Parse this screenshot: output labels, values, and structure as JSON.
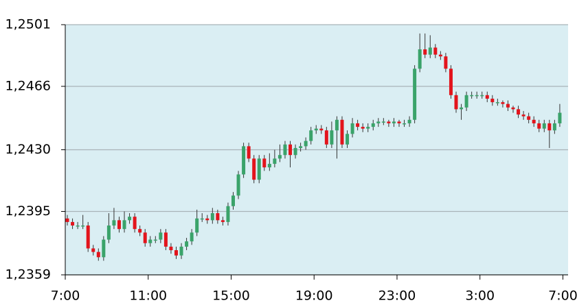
{
  "chart_data": {
    "type": "candlestick",
    "x": [
      0.1,
      0.35,
      0.6,
      0.85,
      1.1,
      1.35,
      1.6,
      1.85,
      2.1,
      2.35,
      2.6,
      2.85,
      3.1,
      3.35,
      3.6,
      3.85,
      4.1,
      4.35,
      4.6,
      4.85,
      5.1,
      5.35,
      5.6,
      5.85,
      6.1,
      6.35,
      6.6,
      6.85,
      7.1,
      7.35,
      7.6,
      7.85,
      8.1,
      8.35,
      8.6,
      8.85,
      9.1,
      9.35,
      9.6,
      9.85,
      10.1,
      10.35,
      10.6,
      10.85,
      11.1,
      11.35,
      11.6,
      11.85,
      12.1,
      12.35,
      12.6,
      12.85,
      13.1,
      13.35,
      13.6,
      13.85,
      14.1,
      14.35,
      14.6,
      14.85,
      15.1,
      15.35,
      15.6,
      15.85,
      16.1,
      16.35,
      16.6,
      16.85,
      17.1,
      17.35,
      17.6,
      17.85,
      18.1,
      18.35,
      18.6,
      18.85,
      19.1,
      19.35,
      19.6,
      19.85,
      20.1,
      20.35,
      20.6,
      20.85,
      21.1,
      21.35,
      21.6,
      21.85,
      22.1,
      22.35,
      22.6,
      22.85,
      23.1,
      23.35,
      23.6,
      23.85
    ],
    "open": [
      1.2391,
      1.2389,
      1.2387,
      1.2387,
      1.2387,
      1.2374,
      1.2372,
      1.2369,
      1.2379,
      1.2387,
      1.239,
      1.2385,
      1.239,
      1.2392,
      1.2385,
      1.2383,
      1.2377,
      1.2379,
      1.2379,
      1.2383,
      1.2375,
      1.2373,
      1.237,
      1.2375,
      1.2378,
      1.2383,
      1.2391,
      1.2391,
      1.239,
      1.2394,
      1.239,
      1.2389,
      1.2398,
      1.2404,
      1.2416,
      1.2432,
      1.2425,
      1.2413,
      1.2425,
      1.242,
      1.2422,
      1.2425,
      1.2427,
      1.2433,
      1.2427,
      1.2431,
      1.2432,
      1.2435,
      1.2441,
      1.2442,
      1.2441,
      1.2433,
      1.2441,
      1.2447,
      1.2433,
      1.2439,
      1.2445,
      1.2443,
      1.2442,
      1.2443,
      1.2445,
      1.2446,
      1.2446,
      1.2445,
      1.2446,
      1.2445,
      1.2445,
      1.2447,
      1.2476,
      1.2487,
      1.2484,
      1.2488,
      1.2484,
      1.2483,
      1.2476,
      1.2461,
      1.2453,
      1.2454,
      1.2461,
      1.2461,
      1.2461,
      1.2461,
      1.2459,
      1.2457,
      1.2457,
      1.2456,
      1.2454,
      1.2453,
      1.245,
      1.2449,
      1.2447,
      1.2445,
      1.2442,
      1.2445,
      1.2441,
      1.2445
    ],
    "high": [
      1.2393,
      1.2391,
      1.2389,
      1.2393,
      1.2389,
      1.2376,
      1.2374,
      1.2381,
      1.2394,
      1.2397,
      1.2392,
      1.2395,
      1.2394,
      1.2394,
      1.2387,
      1.2385,
      1.2381,
      1.2381,
      1.2385,
      1.2385,
      1.2377,
      1.2375,
      1.2377,
      1.238,
      1.2385,
      1.2396,
      1.2394,
      1.2393,
      1.2397,
      1.2396,
      1.2392,
      1.24,
      1.2406,
      1.2418,
      1.2434,
      1.2434,
      1.2427,
      1.2427,
      1.2427,
      1.2428,
      1.243,
      1.2433,
      1.2435,
      1.2435,
      1.2433,
      1.2434,
      1.2437,
      1.2443,
      1.2444,
      1.2444,
      1.2443,
      1.2446,
      1.2449,
      1.2449,
      1.2441,
      1.2448,
      1.2447,
      1.2445,
      1.2445,
      1.2447,
      1.2448,
      1.2448,
      1.2447,
      1.2448,
      1.2447,
      1.2447,
      1.2449,
      1.2478,
      1.2496,
      1.2496,
      1.2495,
      1.249,
      1.2486,
      1.2485,
      1.2478,
      1.2463,
      1.2456,
      1.2463,
      1.2463,
      1.2463,
      1.2463,
      1.2463,
      1.2461,
      1.2459,
      1.2458,
      1.2458,
      1.2455,
      1.2455,
      1.2452,
      1.2451,
      1.2449,
      1.2447,
      1.2447,
      1.2447,
      1.2447,
      1.2456
    ],
    "low": [
      1.2387,
      1.2385,
      1.2385,
      1.2385,
      1.2372,
      1.237,
      1.2367,
      1.2367,
      1.2377,
      1.2385,
      1.2383,
      1.2383,
      1.2388,
      1.2383,
      1.2381,
      1.2375,
      1.2375,
      1.2377,
      1.2377,
      1.2373,
      1.2371,
      1.2368,
      1.2368,
      1.2373,
      1.2376,
      1.2381,
      1.2389,
      1.2388,
      1.2388,
      1.2388,
      1.2387,
      1.2387,
      1.2396,
      1.2402,
      1.2414,
      1.2423,
      1.2411,
      1.2411,
      1.2418,
      1.2418,
      1.242,
      1.2423,
      1.2425,
      1.242,
      1.2425,
      1.2429,
      1.243,
      1.2433,
      1.2439,
      1.2439,
      1.2431,
      1.2431,
      1.2425,
      1.2431,
      1.2431,
      1.2437,
      1.2441,
      1.244,
      1.244,
      1.2441,
      1.2443,
      1.2444,
      1.2443,
      1.2443,
      1.2443,
      1.2443,
      1.2443,
      1.2445,
      1.2474,
      1.2482,
      1.2482,
      1.2482,
      1.2481,
      1.2474,
      1.2459,
      1.2451,
      1.2447,
      1.2452,
      1.2459,
      1.2459,
      1.2459,
      1.2457,
      1.2455,
      1.2455,
      1.2454,
      1.2452,
      1.2451,
      1.2448,
      1.2447,
      1.2445,
      1.2443,
      1.244,
      1.244,
      1.2431,
      1.2439,
      1.2443
    ],
    "close": [
      1.2389,
      1.2387,
      1.2387,
      1.2387,
      1.2374,
      1.2372,
      1.2369,
      1.2379,
      1.2387,
      1.239,
      1.2385,
      1.239,
      1.2392,
      1.2385,
      1.2383,
      1.2377,
      1.2379,
      1.2379,
      1.2383,
      1.2375,
      1.2373,
      1.237,
      1.2375,
      1.2378,
      1.2383,
      1.2391,
      1.2391,
      1.239,
      1.2394,
      1.239,
      1.2389,
      1.2398,
      1.2404,
      1.2416,
      1.2432,
      1.2425,
      1.2413,
      1.2425,
      1.242,
      1.2422,
      1.2425,
      1.2427,
      1.2433,
      1.2427,
      1.2431,
      1.2432,
      1.2435,
      1.2441,
      1.2442,
      1.2441,
      1.2433,
      1.2441,
      1.2447,
      1.2433,
      1.2439,
      1.2445,
      1.2443,
      1.2442,
      1.2443,
      1.2445,
      1.2446,
      1.2446,
      1.2445,
      1.2446,
      1.2445,
      1.2445,
      1.2447,
      1.2476,
      1.2487,
      1.2484,
      1.2488,
      1.2484,
      1.2483,
      1.2476,
      1.2461,
      1.2453,
      1.2454,
      1.2461,
      1.2461,
      1.2461,
      1.2461,
      1.2459,
      1.2457,
      1.2457,
      1.2456,
      1.2454,
      1.2453,
      1.245,
      1.2449,
      1.2447,
      1.2445,
      1.2442,
      1.2445,
      1.2441,
      1.2445,
      1.2451
    ],
    "up_color": "#3aa36a",
    "down_color": "#e3141c",
    "background": "#daeef3",
    "xlim": [
      0,
      24.25
    ],
    "xticks": [
      {
        "value": 0,
        "label": "7:00"
      },
      {
        "value": 4,
        "label": "11:00"
      },
      {
        "value": 8,
        "label": "15:00"
      },
      {
        "value": 12,
        "label": "19:00"
      },
      {
        "value": 16,
        "label": "23:00"
      },
      {
        "value": 20,
        "label": "3:00"
      },
      {
        "value": 24,
        "label": "7:00"
      }
    ],
    "ylim": [
      1.2359,
      1.2501
    ],
    "yticks": [
      {
        "value": 1.2359,
        "label": "1,2359"
      },
      {
        "value": 1.2395,
        "label": "1,2395"
      },
      {
        "value": 1.243,
        "label": "1,2430"
      },
      {
        "value": 1.2466,
        "label": "1,2466"
      },
      {
        "value": 1.2501,
        "label": "1,2501"
      }
    ],
    "grid": true
  }
}
